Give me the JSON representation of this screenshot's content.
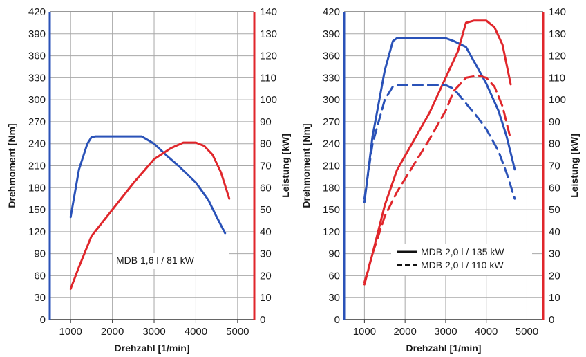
{
  "colors": {
    "torque": "#2a52b8",
    "power": "#e0262b",
    "grid": "#a8a8a8",
    "frame": "#333333"
  },
  "chart_data": [
    {
      "type": "line",
      "xlabel": "Drehzahl [1/min]",
      "ylabel": "Drehmoment [Nm]",
      "y2label": "Leistung [kW]",
      "xlim": [
        500,
        5400
      ],
      "ylim": [
        0,
        420
      ],
      "y2lim": [
        0,
        140
      ],
      "xticks": [
        "1000",
        "2000",
        "3000",
        "4000",
        "5000"
      ],
      "yticks": [
        "0",
        "30",
        "60",
        "90",
        "120",
        "150",
        "180",
        "210",
        "240",
        "270",
        "300",
        "330",
        "360",
        "390",
        "420"
      ],
      "y2ticks": [
        "0",
        "10",
        "20",
        "30",
        "40",
        "50",
        "60",
        "70",
        "80",
        "90",
        "100",
        "110",
        "120",
        "130",
        "140"
      ],
      "grid": true,
      "legend": [
        "MDB 1,6 l / 81 kW"
      ],
      "series": [
        {
          "quantity": "torque",
          "axis": "left",
          "style": "solid",
          "x": [
            1000,
            1200,
            1400,
            1500,
            1600,
            2000,
            2500,
            2700,
            3000,
            3300,
            3600,
            4000,
            4300,
            4500,
            4700
          ],
          "y": [
            140,
            205,
            240,
            249,
            250,
            250,
            250,
            250,
            240,
            224,
            209,
            187,
            163,
            140,
            118
          ]
        },
        {
          "quantity": "power",
          "axis": "right",
          "style": "solid",
          "x": [
            1000,
            1200,
            1500,
            2000,
            2500,
            3000,
            3400,
            3700,
            4000,
            4200,
            4400,
            4600,
            4800
          ],
          "y": [
            14,
            24,
            38,
            50,
            62,
            73,
            78,
            80.5,
            80.5,
            79,
            75,
            67,
            55
          ]
        }
      ]
    },
    {
      "type": "line",
      "xlabel": "Drehzahl [1/min]",
      "ylabel": "Drehmoment [Nm]",
      "y2label": "Leistung [kW]",
      "xlim": [
        500,
        5400
      ],
      "ylim": [
        0,
        420
      ],
      "y2lim": [
        0,
        140
      ],
      "xticks": [
        "1000",
        "2000",
        "3000",
        "4000",
        "5000"
      ],
      "yticks": [
        "0",
        "30",
        "60",
        "90",
        "120",
        "150",
        "180",
        "210",
        "240",
        "270",
        "300",
        "330",
        "360",
        "390",
        "420"
      ],
      "y2ticks": [
        "0",
        "10",
        "20",
        "30",
        "40",
        "50",
        "60",
        "70",
        "80",
        "90",
        "100",
        "110",
        "120",
        "130",
        "140"
      ],
      "grid": true,
      "legend": [
        "MDB 2,0 l / 135 kW",
        "MDB 2,0 l / 110 kW"
      ],
      "series": [
        {
          "quantity": "torque",
          "variant": "MDB 2,0 l / 135 kW",
          "axis": "left",
          "style": "solid",
          "x": [
            1000,
            1200,
            1500,
            1700,
            1800,
            2000,
            3000,
            3200,
            3500,
            3800,
            4000,
            4300,
            4500,
            4700
          ],
          "y": [
            160,
            250,
            340,
            380,
            384,
            384,
            384,
            380,
            372,
            342,
            322,
            285,
            250,
            205
          ]
        },
        {
          "quantity": "power",
          "variant": "MDB 2,0 l / 135 kW",
          "axis": "right",
          "style": "solid",
          "x": [
            1000,
            1200,
            1500,
            1800,
            2200,
            2600,
            3000,
            3300,
            3500,
            3700,
            4000,
            4200,
            4400,
            4600
          ],
          "y": [
            16,
            30,
            52,
            68,
            81,
            94,
            110,
            122,
            135,
            136,
            136,
            133,
            125,
            107
          ]
        },
        {
          "quantity": "torque",
          "variant": "MDB 2,0 l / 110 kW",
          "axis": "left",
          "style": "dashed",
          "x": [
            1000,
            1200,
            1500,
            1700,
            1800,
            2000,
            3000,
            3200,
            3500,
            3800,
            4000,
            4300,
            4500,
            4700
          ],
          "y": [
            165,
            240,
            300,
            318,
            320,
            320,
            320,
            315,
            295,
            275,
            260,
            230,
            200,
            165
          ]
        },
        {
          "quantity": "power",
          "variant": "MDB 2,0 l / 110 kW",
          "axis": "right",
          "style": "dashed",
          "x": [
            1000,
            1200,
            1500,
            1800,
            2200,
            2600,
            3000,
            3200,
            3500,
            3800,
            4000,
            4200,
            4400,
            4600
          ],
          "y": [
            17,
            30,
            47,
            58,
            70,
            82,
            95,
            104,
            110,
            111,
            110,
            106,
            97,
            82
          ]
        }
      ]
    }
  ]
}
